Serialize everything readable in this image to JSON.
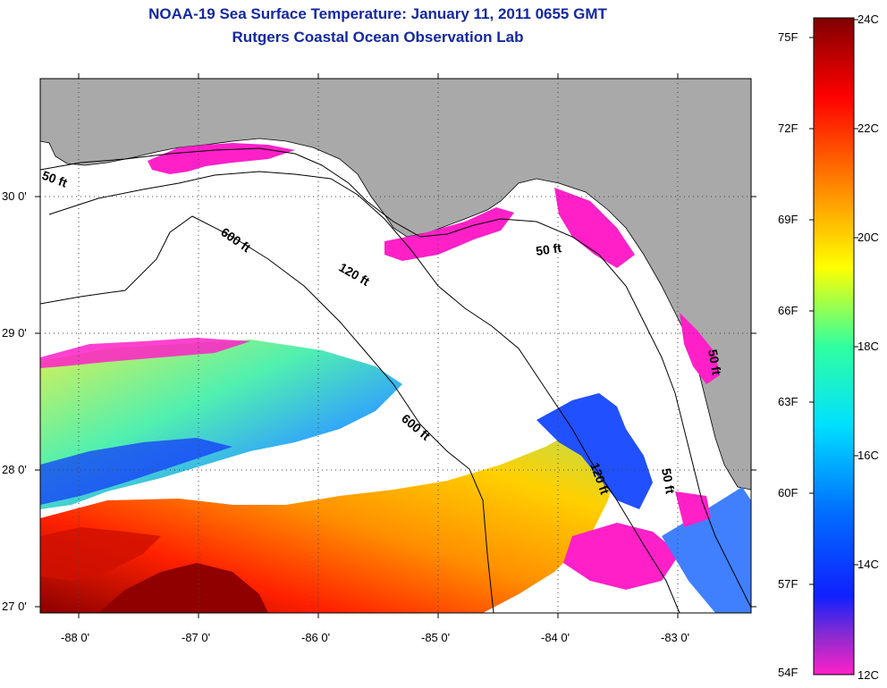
{
  "title": "NOAA-19 Sea Surface Temperature:  January 11, 2011 0655 GMT",
  "subtitle": "Rutgers Coastal Ocean Observation Lab",
  "map": {
    "lon_ticks": [
      "-88 0'",
      "-87 0'",
      "-86 0'",
      "-85 0'",
      "-84 0'",
      "-83 0'"
    ],
    "lat_ticks": [
      "30 0'",
      "29 0'",
      "28 0'",
      "27 0'"
    ],
    "contour_labels": [
      "50 ft",
      "600 ft",
      "120 ft",
      "50 ft",
      "600 ft",
      "120 ft",
      "50 ft",
      "50 ft"
    ]
  },
  "colorbar": {
    "fahrenheit": [
      "75F",
      "72F",
      "69F",
      "66F",
      "63F",
      "60F",
      "57F",
      "54F"
    ],
    "celsius": [
      "24C",
      "22C",
      "20C",
      "18C",
      "16C",
      "14C",
      "12C"
    ],
    "colors": [
      "#ff20c8",
      "#8a2bd0",
      "#1020ff",
      "#00c8ff",
      "#30ffb0",
      "#ffff00",
      "#ff8000",
      "#ff0000",
      "#800000"
    ]
  },
  "colors": {
    "land": "#a9a9a9",
    "cloud": "#ffffff",
    "title": "#1428a0"
  }
}
